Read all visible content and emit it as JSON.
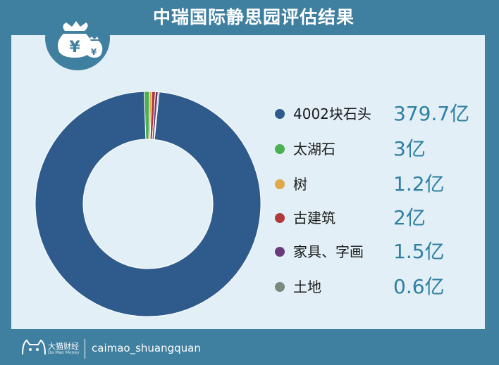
{
  "title": "中瑞国际静思园评估结果",
  "logo": {
    "symbol": "¥",
    "icon": "money-bag-icon"
  },
  "footer": {
    "brand": "大猫财经",
    "brand_sub": "Da Mao Money",
    "handle": "caimao_shuangquan",
    "icon": "cat-icon"
  },
  "colors": {
    "background_bar": "#3f7fa0",
    "panel": "#e2eff6",
    "value_text": "#2f7fa2"
  },
  "chart_data": {
    "type": "pie",
    "donut": true,
    "unit": "亿",
    "legend_position": "right",
    "categories": [
      "4002块石头",
      "太湖石",
      "树",
      "古建筑",
      "家具、字画",
      "土地"
    ],
    "values": [
      379.7,
      3,
      1.2,
      2,
      1.5,
      0.6
    ],
    "value_labels": [
      "379.7亿",
      "3亿",
      "1.2亿",
      "2亿",
      "1.5亿",
      "0.6亿"
    ],
    "colors": [
      "#2e5a8c",
      "#4caf50",
      "#e0a84a",
      "#b03a3a",
      "#6a3a7a",
      "#7a8a80"
    ]
  }
}
